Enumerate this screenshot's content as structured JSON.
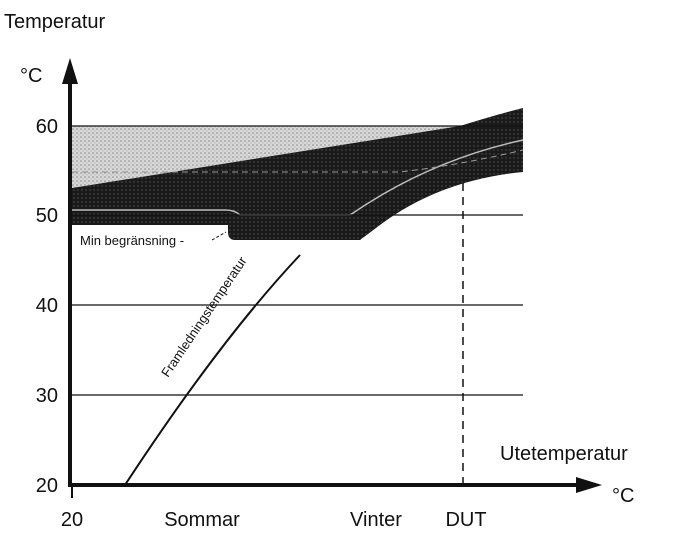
{
  "y_axis": {
    "title": "Temperatur",
    "unit": "°C",
    "ticks": [
      "60",
      "50",
      "40",
      "30",
      "20"
    ]
  },
  "x_axis": {
    "title": "Utetemperatur",
    "unit": "°C",
    "labels": [
      "20",
      "Sommar",
      "Vinter",
      "DUT"
    ]
  },
  "annotations": {
    "min_limit": "Min begränsning -",
    "curve": "Framledningstemperatur"
  }
}
